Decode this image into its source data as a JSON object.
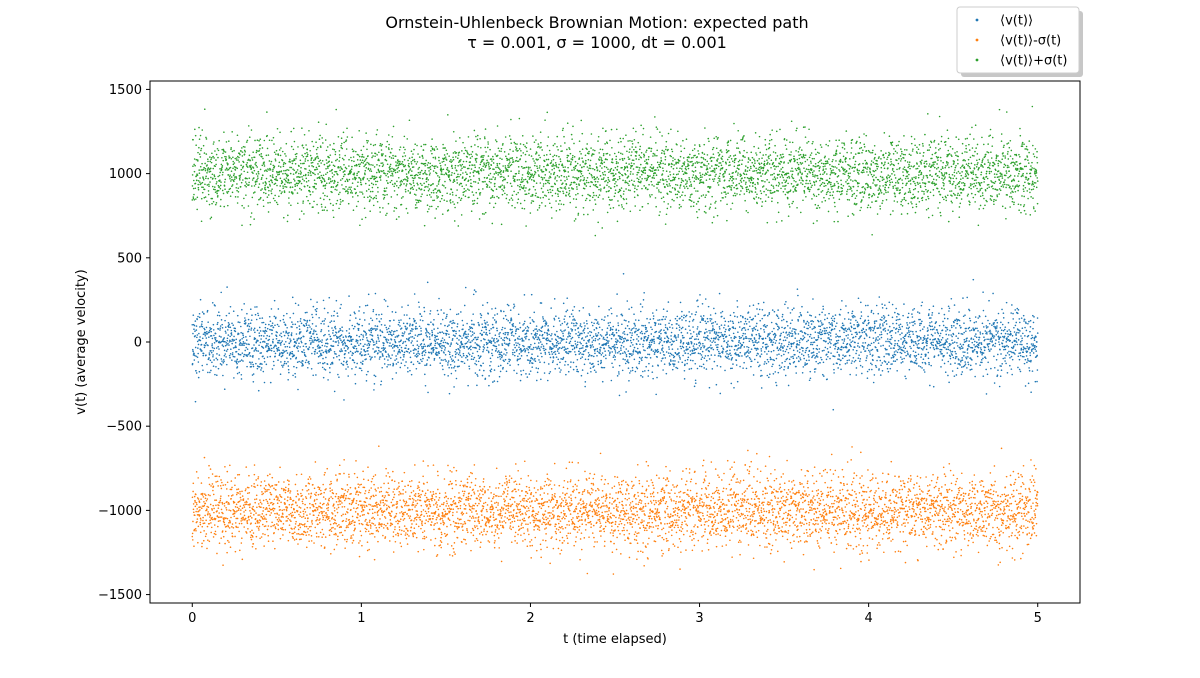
{
  "chart_data": {
    "type": "scatter",
    "title": "Ornstein-Uhlenbeck Brownian Motion: expected path",
    "subtitle": "τ = 0.001, σ = 1000, dt = 0.001",
    "xlabel": "t (time elapsed)",
    "ylabel": "v(t) (average velocity)",
    "xlim": [
      -0.25,
      5.25
    ],
    "ylim": [
      -1550,
      1550
    ],
    "xticks": [
      0,
      1,
      2,
      3,
      4,
      5
    ],
    "xtick_labels": [
      "0",
      "1",
      "2",
      "3",
      "4",
      "5"
    ],
    "yticks": [
      -1500,
      -1000,
      -500,
      0,
      500,
      1000,
      1500
    ],
    "ytick_labels": [
      "−1500",
      "−1000",
      "−500",
      "0",
      "500",
      "1000",
      "1500"
    ],
    "grid": false,
    "legend_position": "top-right",
    "series": [
      {
        "name": "⟨v(t)⟩",
        "color": "#1f77b4",
        "center": 0,
        "spread": 100,
        "t_start": 0,
        "t_end": 5,
        "n_points": 5000
      },
      {
        "name": "⟨v(t)⟩-σ(t)",
        "color": "#ff7f0e",
        "center": -1000,
        "spread": 110,
        "t_start": 0,
        "t_end": 5,
        "n_points": 5000
      },
      {
        "name": "⟨v(t)⟩+σ(t)",
        "color": "#2ca02c",
        "center": 1000,
        "spread": 110,
        "t_start": 0,
        "t_end": 5,
        "n_points": 5000
      }
    ]
  }
}
